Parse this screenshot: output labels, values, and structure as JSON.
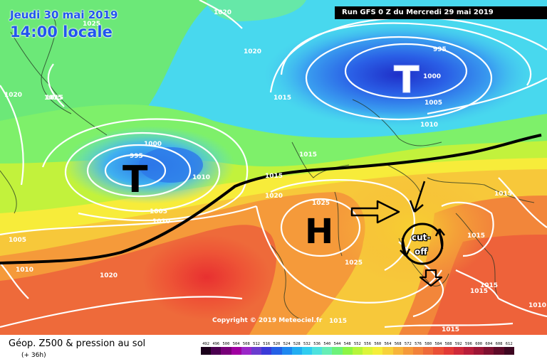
{
  "header": {
    "date": "Jeudi 30 mai 2019",
    "local_time": "14:00 locale",
    "run": "Run GFS 0 Z du Mercredi 29 mai 2019"
  },
  "copyright": "Copyright © 2019 Meteociel.fr",
  "footer": {
    "title": "Géop. Z500 & pression au sol",
    "forecast_hour": "(+ 36h)"
  },
  "map": {
    "pressure_systems": [
      {
        "letter": "T",
        "kind": "low"
      },
      {
        "letter": "T",
        "kind": "low"
      },
      {
        "letter": "H",
        "kind": "high"
      }
    ],
    "isobar_labels": [
      "1025",
      "1020",
      "1015",
      "995",
      "1000",
      "1005",
      "1010",
      "995",
      "1000",
      "1005",
      "1010",
      "1015",
      "1020",
      "1015",
      "1025",
      "1020",
      "1015",
      "1025",
      "1015",
      "1015",
      "1020",
      "1005",
      "1010",
      "1010",
      "1015",
      "1015",
      "1015",
      "1015",
      "1020",
      "1010",
      "1015"
    ],
    "annotation": {
      "line1": "cut-",
      "line2": "off"
    }
  },
  "legend": {
    "labels": [
      "492",
      "496",
      "500",
      "504",
      "508",
      "512",
      "516",
      "520",
      "524",
      "528",
      "532",
      "536",
      "540",
      "544",
      "548",
      "552",
      "556",
      "560",
      "564",
      "568",
      "572",
      "576",
      "580",
      "584",
      "588",
      "592",
      "596",
      "600",
      "604",
      "608",
      "612"
    ],
    "colors": [
      "#1a001a",
      "#4b0050",
      "#780078",
      "#a000a0",
      "#9b27c8",
      "#6a3ccf",
      "#3a3ad8",
      "#2460e6",
      "#1e88f0",
      "#22aef2",
      "#30cdf0",
      "#4ee2de",
      "#66eeb5",
      "#6cf27a",
      "#8cf544",
      "#b6f53a",
      "#dcf53a",
      "#f5ee3a",
      "#f7d23a",
      "#f7b53a",
      "#f59a3a",
      "#f2823a",
      "#ee6a3a",
      "#ea5036",
      "#e23a36",
      "#cf2a3a",
      "#b81e3a",
      "#9d1636",
      "#7e1030",
      "#5e0a28",
      "#3d0620"
    ]
  }
}
